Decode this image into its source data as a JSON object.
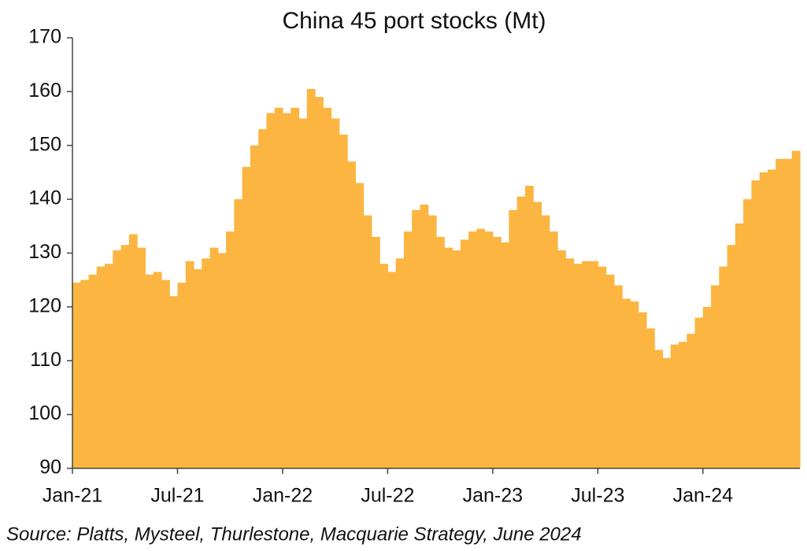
{
  "chart_data": {
    "type": "area",
    "title": "China 45 port stocks (Mt)",
    "source": "Source: Platts, Mysteel, Thurlestone, Macquarie Strategy, June 2024",
    "color": "#fbb540",
    "categories": [
      "Jan-21",
      null,
      null,
      null,
      null,
      null,
      null,
      null,
      null,
      null,
      null,
      null,
      null,
      "Jul-21",
      null,
      null,
      null,
      null,
      null,
      null,
      null,
      null,
      null,
      null,
      null,
      null,
      "Jan-22",
      null,
      null,
      null,
      null,
      null,
      null,
      null,
      null,
      null,
      null,
      null,
      null,
      "Jul-22",
      null,
      null,
      null,
      null,
      null,
      null,
      null,
      null,
      null,
      null,
      null,
      null,
      "Jan-23",
      null,
      null,
      null,
      null,
      null,
      null,
      null,
      null,
      null,
      null,
      null,
      null,
      "Jul-23",
      null,
      null,
      null,
      null,
      null,
      null,
      null,
      null,
      null,
      null,
      null,
      null,
      "Jan-24",
      null,
      null,
      null,
      null,
      null,
      null,
      null,
      null,
      null,
      null,
      null
    ],
    "values": [
      124.5,
      125,
      126,
      127.5,
      128,
      130.5,
      131.5,
      133.5,
      131,
      126,
      126.5,
      125,
      122,
      124.5,
      128.5,
      127,
      129,
      131,
      130,
      134,
      140,
      146,
      150,
      153,
      156,
      157,
      156,
      157,
      155,
      160.5,
      159,
      157,
      155,
      152,
      147,
      143,
      137,
      133,
      128,
      126.5,
      129,
      134,
      138,
      139,
      137,
      133,
      131,
      130.5,
      132.5,
      134,
      134.5,
      134,
      133,
      132,
      138,
      140.5,
      142.5,
      139.5,
      137,
      134,
      130.5,
      129,
      128,
      128.5,
      128.5,
      127.5,
      126,
      124,
      121.5,
      121,
      119,
      116,
      112,
      110.5,
      113,
      113.5,
      115,
      118,
      120,
      124,
      127.5,
      131.5,
      135.5,
      140,
      143.5,
      145,
      145.5,
      147.5,
      147.5,
      149
    ],
    "ylim": [
      90,
      170
    ],
    "yticks": [
      90,
      100,
      110,
      120,
      130,
      140,
      150,
      160,
      170
    ]
  }
}
